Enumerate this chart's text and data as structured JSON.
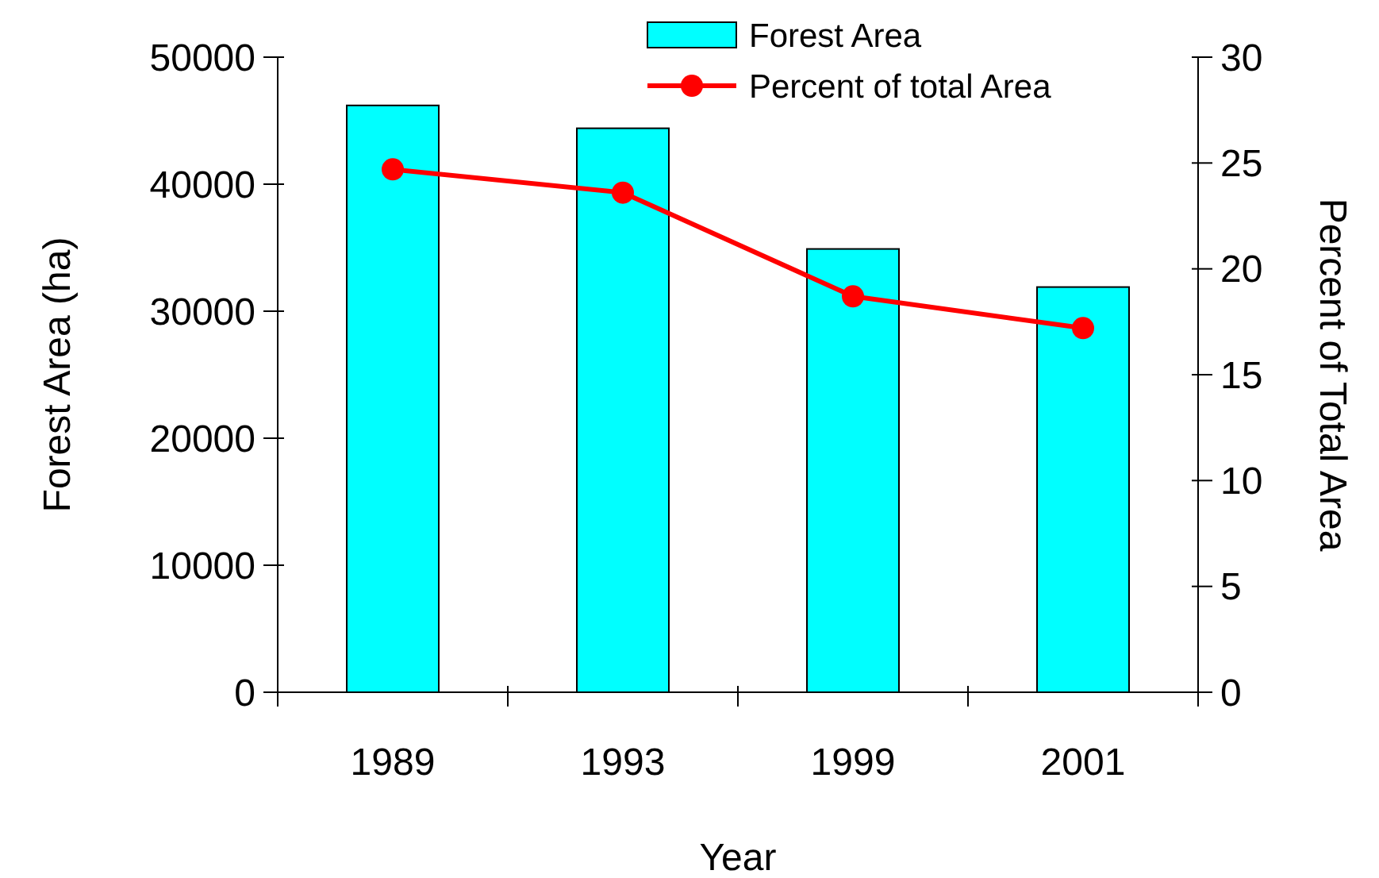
{
  "chart_data": {
    "type": "bar",
    "xlabel": "Year",
    "ylabel": "Forest Area (ha)",
    "y2label": "Percent of Total Area",
    "categories": [
      "1989",
      "1993",
      "1999",
      "2001"
    ],
    "series": [
      {
        "name": "Forest Area",
        "color": "#00ffff",
        "values": [
          46200,
          44400,
          34900,
          31900
        ]
      },
      {
        "name": "Percent of total Area",
        "type": "line",
        "axis": "y2",
        "color": "#ff0000",
        "marker": "circle",
        "values": [
          24.7,
          23.6,
          18.7,
          17.2
        ]
      }
    ],
    "ylim": [
      0,
      50000
    ],
    "yticks": [
      0,
      10000,
      20000,
      30000,
      40000,
      50000
    ],
    "y2lim": [
      0,
      30
    ],
    "y2ticks": [
      0,
      5,
      10,
      15,
      20,
      25,
      30
    ],
    "legend": "top",
    "grid": false
  }
}
